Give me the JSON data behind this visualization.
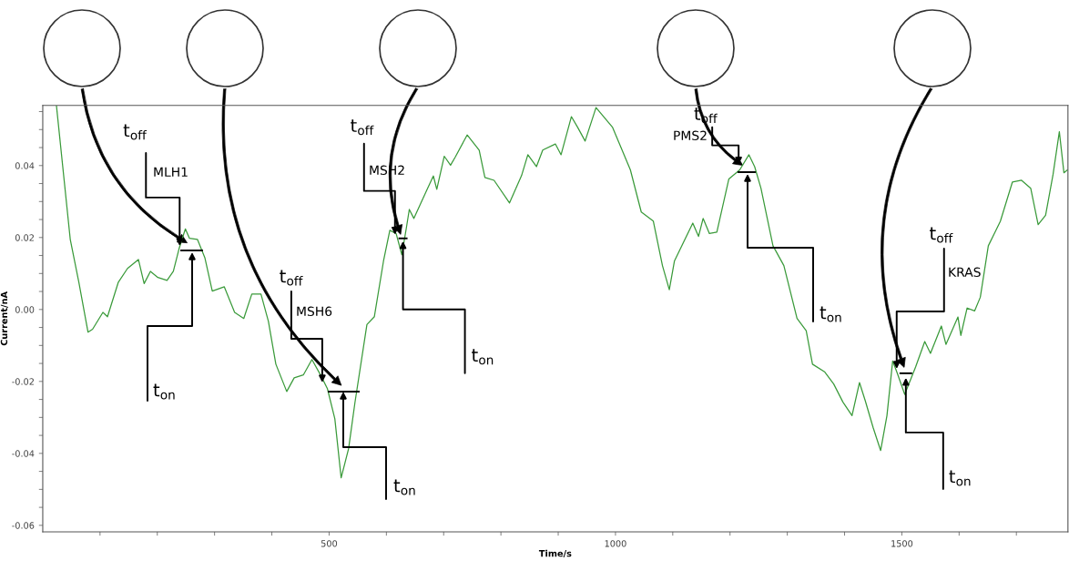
{
  "chart_data": {
    "type": "line",
    "xlabel": "Time/s",
    "ylabel": "Current/nA",
    "x": [
      24,
      48,
      63,
      79,
      87,
      105,
      113,
      132,
      148,
      167,
      177,
      188,
      201,
      217,
      228,
      238,
      249,
      256,
      270,
      283,
      296,
      317,
      335,
      351,
      365,
      381,
      394,
      407,
      426,
      439,
      455,
      470,
      486,
      497,
      510,
      521,
      534,
      545,
      566,
      579,
      595,
      606,
      617,
      627,
      635,
      640,
      648,
      672,
      682,
      688,
      701,
      712,
      720,
      741,
      762,
      772,
      788,
      815,
      836,
      847,
      862,
      873,
      895,
      905,
      923,
      934,
      947,
      966,
      995,
      1026,
      1045,
      1066,
      1082,
      1094,
      1103,
      1135,
      1145,
      1153,
      1164,
      1177,
      1198,
      1217,
      1233,
      1243,
      1254,
      1275,
      1294,
      1317,
      1333,
      1344,
      1365,
      1381,
      1397,
      1413,
      1426,
      1436,
      1450,
      1463,
      1474,
      1484,
      1492,
      1505,
      1524,
      1540,
      1550,
      1569,
      1577,
      1598,
      1603,
      1614,
      1627,
      1637,
      1651,
      1672,
      1693,
      1709,
      1725,
      1738,
      1751,
      1764,
      1775,
      1783,
      1789
    ],
    "series": [
      {
        "color": "#3a9a3a",
        "values": [
          0.0565,
          0.0195,
          0.0076,
          -0.0063,
          -0.0055,
          -0.0008,
          -0.002,
          0.0076,
          0.0114,
          0.0139,
          0.0072,
          0.0106,
          0.0089,
          0.0081,
          0.0106,
          0.0169,
          0.0224,
          0.0198,
          0.0195,
          0.0144,
          0.0051,
          0.0063,
          -0.0008,
          -0.0025,
          0.0043,
          0.0043,
          -0.0033,
          -0.0152,
          -0.0228,
          -0.019,
          -0.0182,
          -0.0139,
          -0.0185,
          -0.022,
          -0.0304,
          -0.0468,
          -0.0387,
          -0.026,
          -0.0042,
          -0.002,
          0.0135,
          0.022,
          0.0211,
          0.0152,
          0.0228,
          0.0278,
          0.0253,
          0.0337,
          0.0371,
          0.0334,
          0.0426,
          0.0401,
          0.0423,
          0.0485,
          0.0443,
          0.0367,
          0.0359,
          0.0296,
          0.0372,
          0.043,
          0.0397,
          0.0443,
          0.046,
          0.043,
          0.0536,
          0.0506,
          0.0468,
          0.0561,
          0.0506,
          0.0388,
          0.0271,
          0.0246,
          0.0122,
          0.0055,
          0.0135,
          0.024,
          0.0203,
          0.0253,
          0.0211,
          0.0215,
          0.0363,
          0.0388,
          0.043,
          0.0397,
          0.0337,
          0.0177,
          0.0122,
          -0.0025,
          -0.0059,
          -0.0152,
          -0.0173,
          -0.0207,
          -0.0257,
          -0.0295,
          -0.0203,
          -0.0253,
          -0.0329,
          -0.0392,
          -0.0295,
          -0.0143,
          -0.0177,
          -0.0236,
          -0.016,
          -0.0089,
          -0.0122,
          -0.0046,
          -0.0097,
          -0.0021,
          -0.0072,
          0.0004,
          -0.0004,
          0.0034,
          0.0177,
          0.0245,
          0.0354,
          0.0359,
          0.0337,
          0.0236,
          0.0262,
          0.0375,
          0.0494,
          0.038,
          0.0388
        ]
      }
    ],
    "xlim": [
      0,
      1790
    ],
    "ylim": [
      -0.0618,
      0.0567
    ],
    "xticks": [
      {
        "value": 100,
        "label": null
      },
      {
        "value": 200,
        "label": null
      },
      {
        "value": 300,
        "label": null
      },
      {
        "value": 400,
        "label": null
      },
      500,
      {
        "value": 600,
        "label": null
      },
      {
        "value": 700,
        "label": null
      },
      {
        "value": 800,
        "label": null
      },
      {
        "value": 900,
        "label": null
      },
      1000,
      {
        "value": 1100,
        "label": null
      },
      {
        "value": 1200,
        "label": null
      },
      {
        "value": 1300,
        "label": null
      },
      {
        "value": 1400,
        "label": null
      },
      1500,
      {
        "value": 1600,
        "label": null
      },
      {
        "value": 1700,
        "label": null
      }
    ],
    "yticks": [
      {
        "value": -0.06,
        "label": "-0.06"
      },
      {
        "value": -0.055,
        "label": null
      },
      {
        "value": -0.05,
        "label": null
      },
      {
        "value": -0.045,
        "label": null
      },
      {
        "value": -0.04,
        "label": "-0.04"
      },
      {
        "value": -0.035,
        "label": null
      },
      {
        "value": -0.03,
        "label": null
      },
      {
        "value": -0.025,
        "label": null
      },
      {
        "value": -0.02,
        "label": "-0.02"
      },
      {
        "value": -0.015,
        "label": null
      },
      {
        "value": -0.01,
        "label": null
      },
      {
        "value": -0.005,
        "label": null
      },
      {
        "value": 0,
        "label": "0.00"
      },
      {
        "value": 0.005,
        "label": null
      },
      {
        "value": 0.01,
        "label": null
      },
      {
        "value": 0.015,
        "label": null
      },
      {
        "value": 0.02,
        "label": "0.02"
      },
      {
        "value": 0.025,
        "label": null
      },
      {
        "value": 0.03,
        "label": null
      },
      {
        "value": 0.035,
        "label": null
      },
      {
        "value": 0.04,
        "label": "0.04"
      },
      {
        "value": 0.045,
        "label": null
      },
      {
        "value": 0.05,
        "label": null
      },
      {
        "value": 0.055,
        "label": null
      }
    ],
    "grid": false,
    "annotations": [
      {
        "text": "t$_{off}$",
        "x": 239,
        "y": 0.0177
      },
      "MLH1",
      "t$_{on}$",
      {
        "text": "t$_{off}$",
        "x": 488,
        "y": -0.0203
      },
      "MSH6",
      "t$_{on}$",
      {
        "text": "t$_{off}$",
        "x": 615,
        "y": 0.0208
      },
      "MSH2",
      {
        "text": "t$_{on}$",
        "x": 629,
        "y": 0.019
      },
      {
        "text": "t$_{off}$",
        "x": 1215,
        "y": 0.0403
      },
      "PMS2",
      "t$_{on}$",
      {
        "text": "t$_{off}$",
        "x": 1491,
        "y": -0.0165
      },
      "KRAS",
      {
        "text": "t$_{on}$",
        "x": 1507,
        "y": -0.019
      }
    ]
  }
}
